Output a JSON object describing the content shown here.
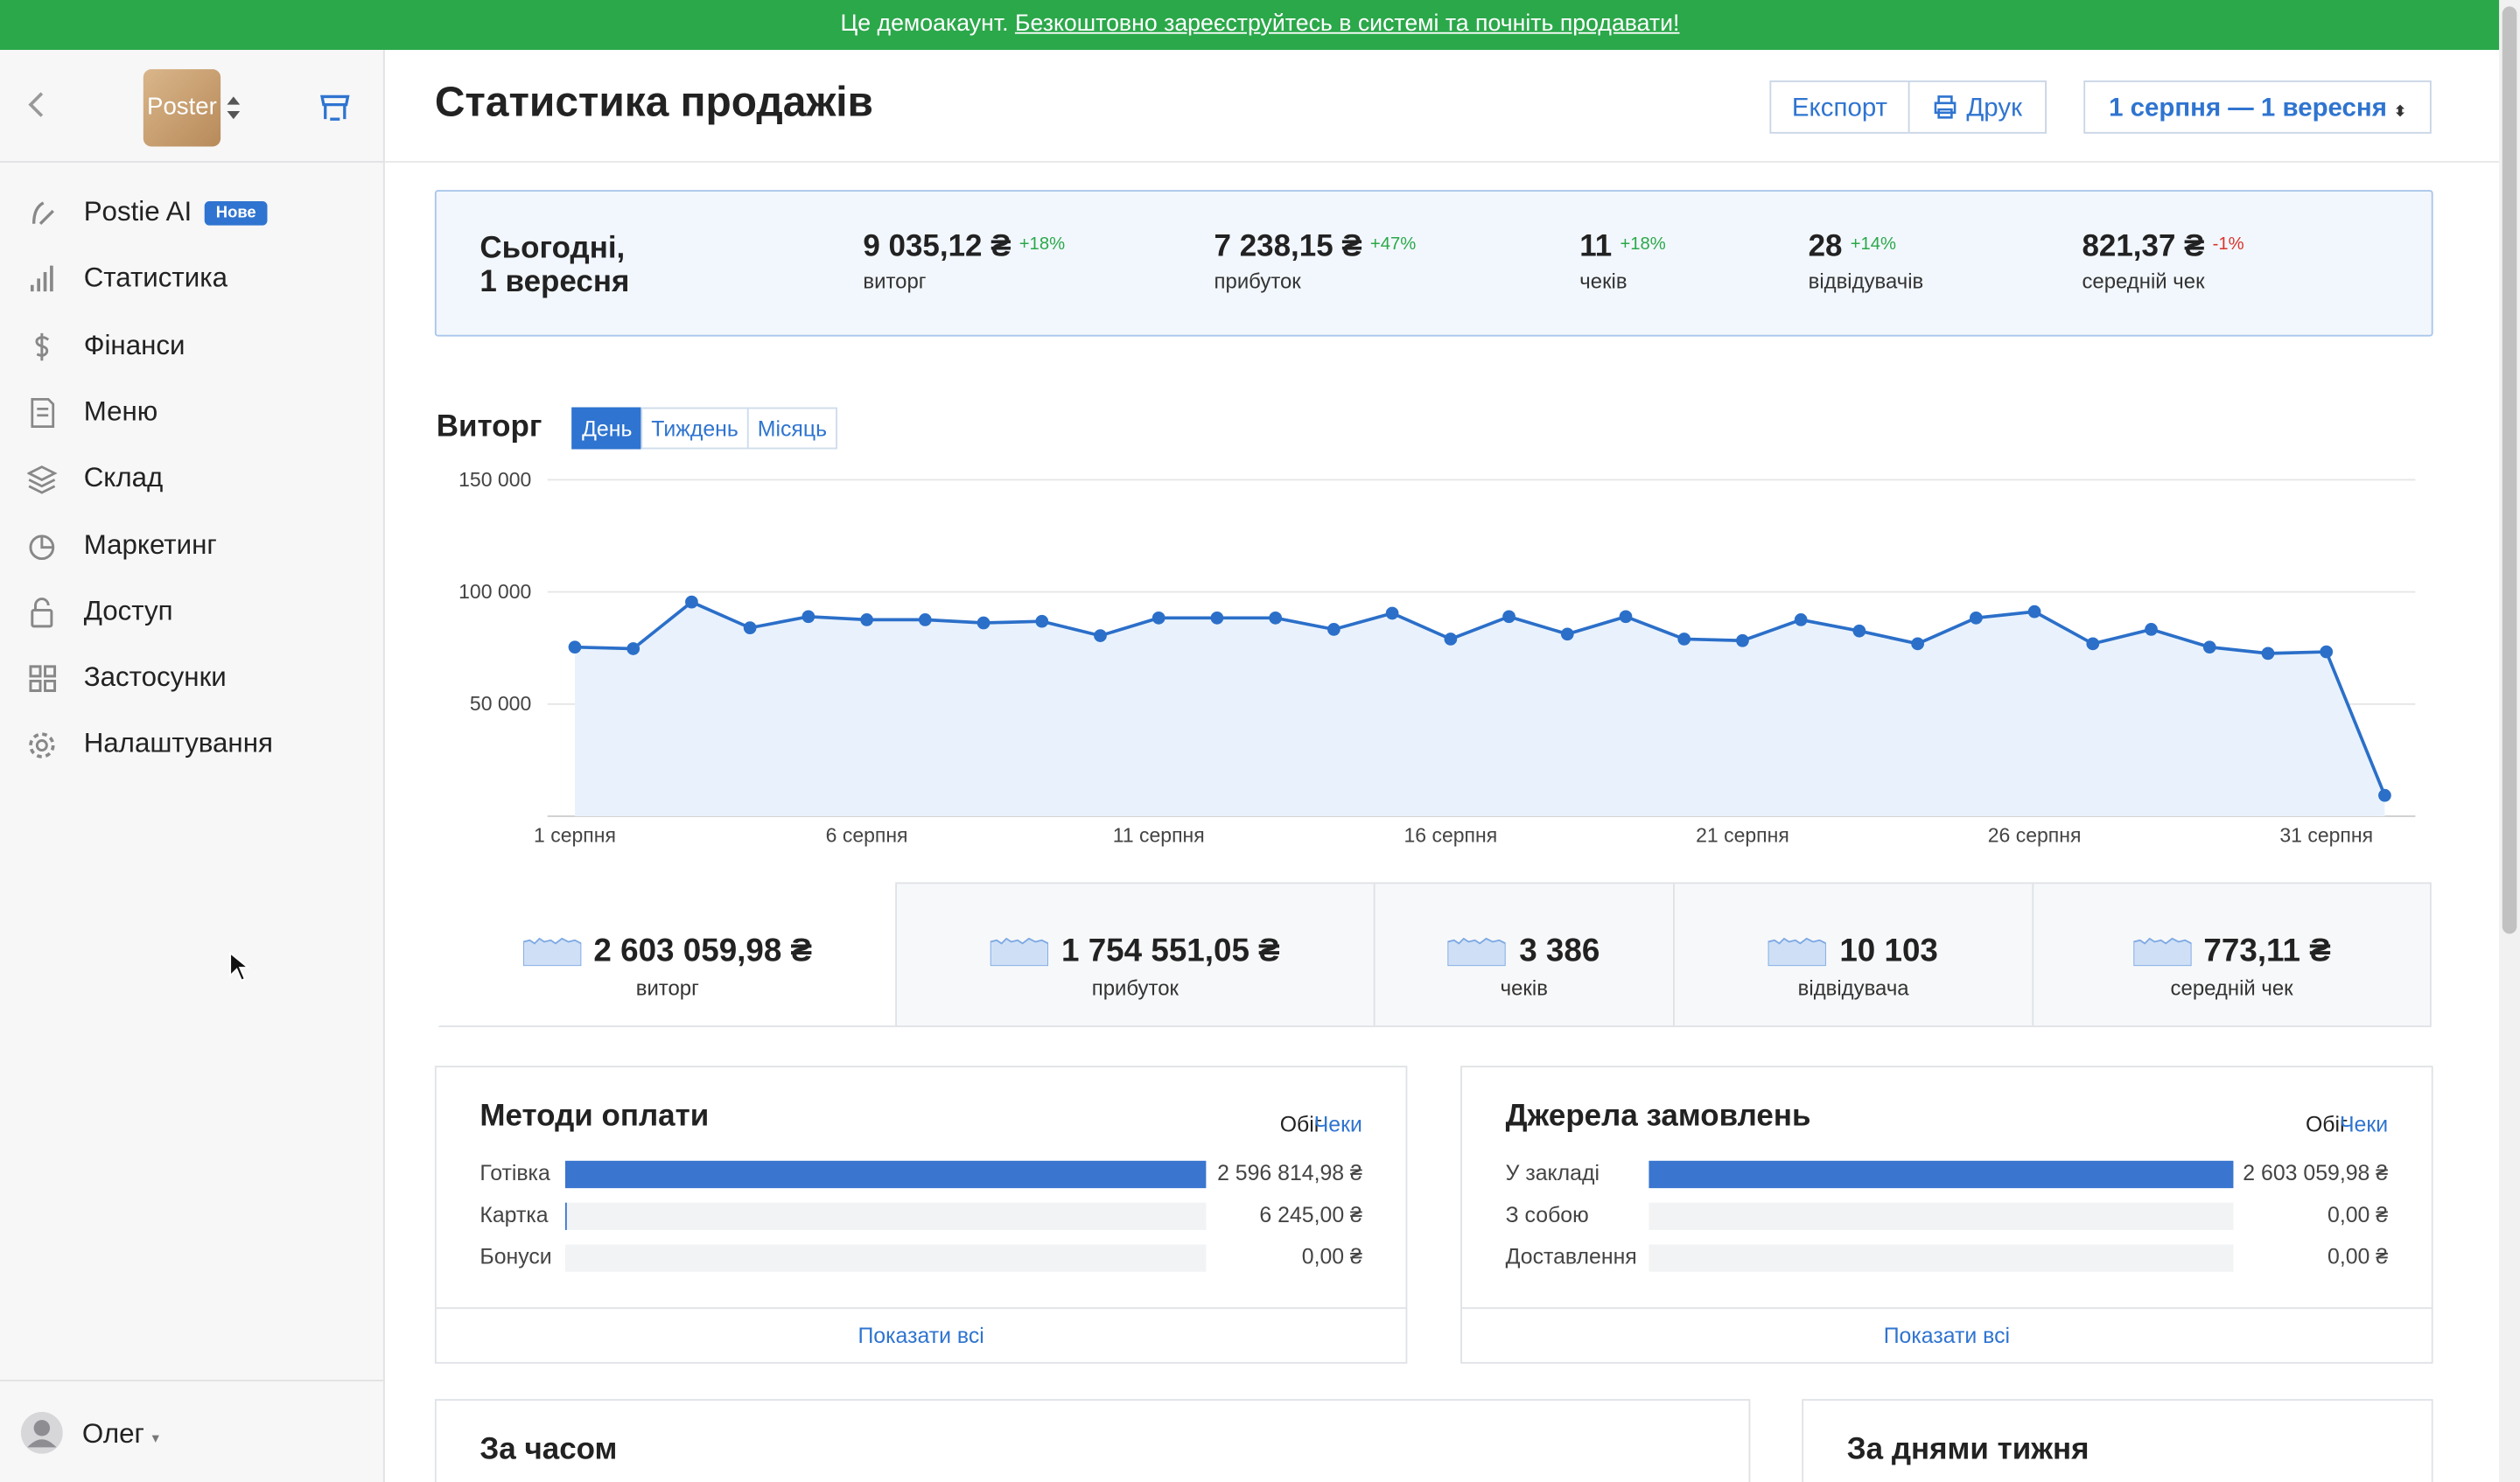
{
  "banner": {
    "text": "Це демоакаунт.",
    "link": "Безкоштовно зареєструйтесь в системі та почніть продавати!"
  },
  "sidebar": {
    "logo": "Poster",
    "nav": [
      {
        "label": "Postie AI",
        "badge": "Нове"
      },
      {
        "label": "Статистика"
      },
      {
        "label": "Фінанси"
      },
      {
        "label": "Меню"
      },
      {
        "label": "Склад"
      },
      {
        "label": "Маркетинг"
      },
      {
        "label": "Доступ"
      },
      {
        "label": "Застосунки"
      },
      {
        "label": "Налаштування"
      }
    ],
    "user": "Олег"
  },
  "header": {
    "title": "Статистика продажів",
    "buttons": [
      "Експорт",
      "Друк"
    ],
    "date_range": "1 серпня — 1 вересня"
  },
  "today": {
    "title_lines": [
      "Сьогодні,",
      "1 вересня"
    ],
    "metrics": [
      {
        "value": "9 035,12 ₴",
        "change": "+18%",
        "label": "виторг"
      },
      {
        "value": "7 238,15 ₴",
        "change": "+47%",
        "label": "прибуток"
      },
      {
        "value": "11",
        "change": "+18%",
        "label": "чеків"
      },
      {
        "value": "28",
        "change": "+14%",
        "label": "відвідувачів"
      },
      {
        "value": "821,37 ₴",
        "change": "-1%",
        "label": "середній чек"
      }
    ]
  },
  "revenue": {
    "title": "Виторг",
    "tabs": [
      "День",
      "Тиждень",
      "Місяць"
    ]
  },
  "chart_data": {
    "type": "line",
    "color": "#2b6fc9",
    "fill": "#e9f2fc",
    "grid": true,
    "categories": [
      "1 серпня",
      null,
      null,
      null,
      null,
      "6 серпня",
      null,
      null,
      null,
      null,
      "11 серпня",
      null,
      null,
      null,
      null,
      "16 серпня",
      null,
      null,
      null,
      null,
      "21 серпня",
      null,
      null,
      null,
      null,
      "26 серпня",
      null,
      null,
      null,
      null,
      "31 серпня",
      null
    ],
    "values": [
      75400,
      74700,
      95500,
      84000,
      89000,
      87600,
      87600,
      86200,
      86900,
      80500,
      88400,
      88400,
      88400,
      83300,
      90500,
      79000,
      89000,
      81200,
      89000,
      79000,
      78300,
      87600,
      82600,
      76900,
      88400,
      91200,
      76900,
      83300,
      75400,
      72600,
      73300,
      9300
    ],
    "ylim": [
      0,
      150000
    ],
    "yticks": [
      {
        "value": 50000,
        "label": "50 000"
      },
      {
        "value": 100000,
        "label": "100 000"
      },
      {
        "value": 150000,
        "label": "150 000"
      }
    ]
  },
  "totals": [
    {
      "value": "2 603 059,98 ₴",
      "label": "виторг"
    },
    {
      "value": "1 754 551,05 ₴",
      "label": "прибуток"
    },
    {
      "value": "3 386",
      "label": "чеків"
    },
    {
      "value": "10 103",
      "label": "відвідувача"
    },
    {
      "value": "773,11 ₴",
      "label": "середній чек"
    }
  ],
  "payment": {
    "title": "Методи оплати",
    "toggle": [
      "Обіг",
      "Чеки"
    ],
    "rows": [
      {
        "label": "Готівка",
        "amount": 2596814.98,
        "amount_label": "2 596 814,98 ₴"
      },
      {
        "label": "Картка",
        "amount": 6245,
        "amount_label": "6 245,00 ₴"
      },
      {
        "label": "Бонуси",
        "amount": 0,
        "amount_label": "0,00 ₴"
      }
    ],
    "show_all": "Показати всі"
  },
  "sources": {
    "title": "Джерела замовлень",
    "toggle": [
      "Обіг",
      "Чеки"
    ],
    "rows": [
      {
        "label": "У закладі",
        "amount": 2603059.98,
        "amount_label": "2 603 059,98 ₴"
      },
      {
        "label": "З собою",
        "amount": 0,
        "amount_label": "0,00 ₴"
      },
      {
        "label": "Доставлення",
        "amount": 0,
        "amount_label": "0,00 ₴"
      }
    ],
    "show_all": "Показати всі"
  },
  "bottom": {
    "by_time": "За часом",
    "by_weekday": "За днями тижня"
  }
}
